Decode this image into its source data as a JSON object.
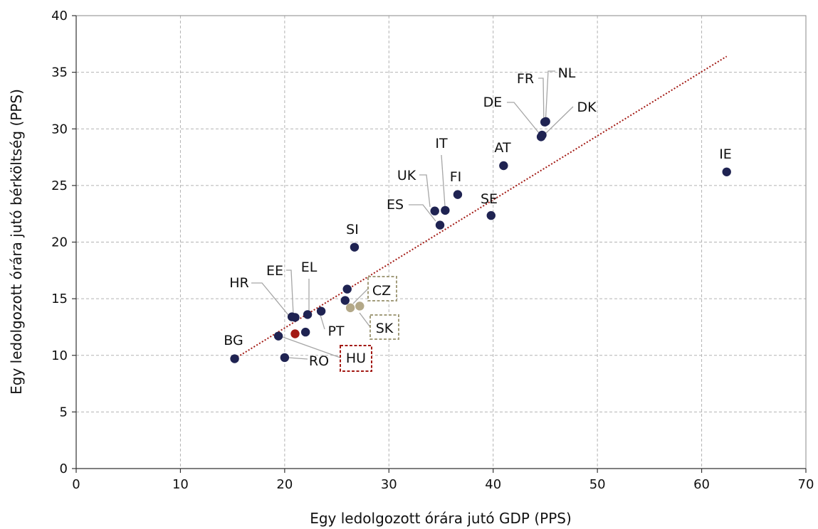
{
  "chart_data": {
    "type": "scatter",
    "title": "",
    "xlabel": "Egy ledolgozott órára jutó GDP (PPS)",
    "ylabel": "Egy ledolgozott órára jutó bérköltség (PPS)",
    "xlim": [
      0,
      70
    ],
    "ylim": [
      0,
      40
    ],
    "x_ticks": [
      "0",
      "10",
      "20",
      "30",
      "40",
      "50",
      "60",
      "70"
    ],
    "y_ticks": [
      "0",
      "5",
      "10",
      "15",
      "20",
      "25",
      "30",
      "35",
      "40"
    ],
    "grid": true,
    "legend": "none",
    "colors": {
      "default": "#1f2352",
      "HU": "#a31a14",
      "CZ": "#b3a888",
      "SK": "#b3a888",
      "trendline": "#a31a14",
      "boxHU": "#a31a14",
      "boxCZSK": "#a39d7c"
    },
    "points": [
      {
        "label": "BG",
        "x": 15.2,
        "y": 9.7
      },
      {
        "label": "RO",
        "x": 20.0,
        "y": 9.8
      },
      {
        "label": "HU",
        "x": 21.0,
        "y": 11.9
      },
      {
        "label": "",
        "x": 22.0,
        "y": 12.05
      },
      {
        "label": "",
        "x": 19.4,
        "y": 11.7
      },
      {
        "label": "HR",
        "x": 20.7,
        "y": 13.4
      },
      {
        "label": "EE",
        "x": 21.0,
        "y": 13.35
      },
      {
        "label": "EL",
        "x": 22.2,
        "y": 13.6
      },
      {
        "label": "PT",
        "x": 23.5,
        "y": 13.9
      },
      {
        "label": "",
        "x": 25.8,
        "y": 14.85
      },
      {
        "label": "",
        "x": 26.0,
        "y": 15.85
      },
      {
        "label": "CZ",
        "x": 26.3,
        "y": 14.2
      },
      {
        "label": "SK",
        "x": 27.2,
        "y": 14.35
      },
      {
        "label": "SI",
        "x": 26.7,
        "y": 19.55
      },
      {
        "label": "ES",
        "x": 34.9,
        "y": 21.5
      },
      {
        "label": "UK",
        "x": 34.4,
        "y": 22.75
      },
      {
        "label": "IT",
        "x": 35.4,
        "y": 22.8
      },
      {
        "label": "FI",
        "x": 36.6,
        "y": 24.2
      },
      {
        "label": "SE",
        "x": 39.8,
        "y": 22.35
      },
      {
        "label": "AT",
        "x": 41.0,
        "y": 26.75
      },
      {
        "label": "DE",
        "x": 44.6,
        "y": 29.3
      },
      {
        "label": "DK",
        "x": 44.7,
        "y": 29.45
      },
      {
        "label": "FR",
        "x": 44.95,
        "y": 30.6
      },
      {
        "label": "NL",
        "x": 45.05,
        "y": 30.65
      },
      {
        "label": "IE",
        "x": 62.4,
        "y": 26.2
      }
    ],
    "trendline": {
      "x": [
        15.2,
        62.4
      ],
      "y": [
        9.7,
        36.4
      ]
    }
  }
}
